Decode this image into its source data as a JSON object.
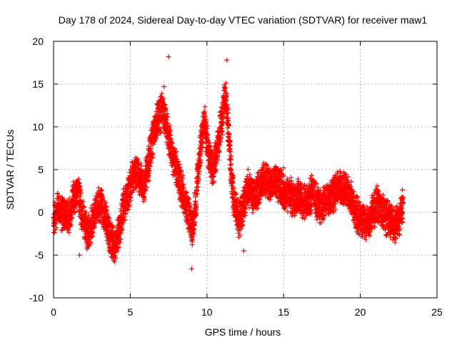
{
  "chart_data": {
    "type": "scatter",
    "title": "Day 178 of 2024, Sidereal Day-to-day VTEC variation (SDTVAR) for receiver maw1",
    "xlabel": "GPS time / hours",
    "ylabel": "SDTVAR / TECUs",
    "xlim": [
      0,
      25
    ],
    "ylim": [
      -10,
      20
    ],
    "xticks": [
      0,
      5,
      10,
      15,
      20,
      25
    ],
    "yticks": [
      -10,
      -5,
      0,
      5,
      10,
      15,
      20
    ],
    "grid": true,
    "marker": "plus",
    "series": [
      {
        "name": "SDTVAR",
        "color": "#ff0000",
        "trend": [
          [
            0.0,
            -1.0
          ],
          [
            0.3,
            0.5
          ],
          [
            0.6,
            0.0
          ],
          [
            1.0,
            -0.5
          ],
          [
            1.3,
            1.5
          ],
          [
            1.6,
            2.5
          ],
          [
            1.9,
            -0.5
          ],
          [
            2.2,
            -2.5
          ],
          [
            2.5,
            -1.5
          ],
          [
            2.8,
            0.5
          ],
          [
            3.1,
            1.0
          ],
          [
            3.4,
            -1.0
          ],
          [
            3.7,
            -3.0
          ],
          [
            4.0,
            -4.0
          ],
          [
            4.3,
            -2.0
          ],
          [
            4.6,
            1.0
          ],
          [
            5.0,
            3.0
          ],
          [
            5.3,
            5.0
          ],
          [
            5.6,
            4.0
          ],
          [
            5.9,
            3.0
          ],
          [
            6.2,
            6.0
          ],
          [
            6.5,
            9.0
          ],
          [
            6.8,
            11.0
          ],
          [
            7.1,
            12.0
          ],
          [
            7.4,
            10.0
          ],
          [
            7.7,
            7.0
          ],
          [
            8.0,
            5.0
          ],
          [
            8.3,
            3.0
          ],
          [
            8.6,
            1.0
          ],
          [
            8.9,
            -1.0
          ],
          [
            9.1,
            -2.0
          ],
          [
            9.3,
            2.0
          ],
          [
            9.6,
            8.0
          ],
          [
            9.8,
            11.0
          ],
          [
            10.1,
            7.0
          ],
          [
            10.4,
            5.0
          ],
          [
            10.7,
            8.0
          ],
          [
            11.0,
            11.0
          ],
          [
            11.2,
            14.0
          ],
          [
            11.4,
            10.0
          ],
          [
            11.6,
            4.0
          ],
          [
            11.8,
            1.0
          ],
          [
            12.1,
            -1.0
          ],
          [
            12.4,
            1.0
          ],
          [
            12.7,
            3.0
          ],
          [
            13.0,
            2.0
          ],
          [
            13.3,
            2.5
          ],
          [
            13.6,
            3.5
          ],
          [
            13.9,
            4.0
          ],
          [
            14.2,
            3.0
          ],
          [
            14.5,
            3.5
          ],
          [
            14.8,
            3.0
          ],
          [
            15.1,
            2.0
          ],
          [
            15.4,
            2.0
          ],
          [
            15.7,
            1.5
          ],
          [
            16.0,
            2.0
          ],
          [
            16.3,
            1.0
          ],
          [
            16.6,
            1.5
          ],
          [
            16.9,
            2.5
          ],
          [
            17.2,
            1.0
          ],
          [
            17.5,
            0.5
          ],
          [
            17.8,
            1.5
          ],
          [
            18.1,
            2.0
          ],
          [
            18.4,
            2.5
          ],
          [
            18.7,
            3.0
          ],
          [
            19.0,
            2.5
          ],
          [
            19.3,
            2.0
          ],
          [
            19.6,
            0.5
          ],
          [
            19.9,
            -0.5
          ],
          [
            20.2,
            -1.0
          ],
          [
            20.5,
            -1.5
          ],
          [
            20.8,
            0.0
          ],
          [
            21.1,
            1.0
          ],
          [
            21.4,
            0.0
          ],
          [
            21.7,
            -0.5
          ],
          [
            22.0,
            -1.0
          ],
          [
            22.3,
            -1.5
          ],
          [
            22.6,
            -0.5
          ],
          [
            22.8,
            1.0
          ]
        ],
        "notable_points": [
          [
            7.5,
            18.2
          ],
          [
            7.2,
            14.7
          ],
          [
            11.3,
            17.8
          ],
          [
            12.4,
            -4.5
          ],
          [
            9.0,
            -6.6
          ],
          [
            3.8,
            -4.8
          ],
          [
            1.7,
            -5.0
          ],
          [
            15.0,
            5.2
          ]
        ]
      }
    ]
  }
}
